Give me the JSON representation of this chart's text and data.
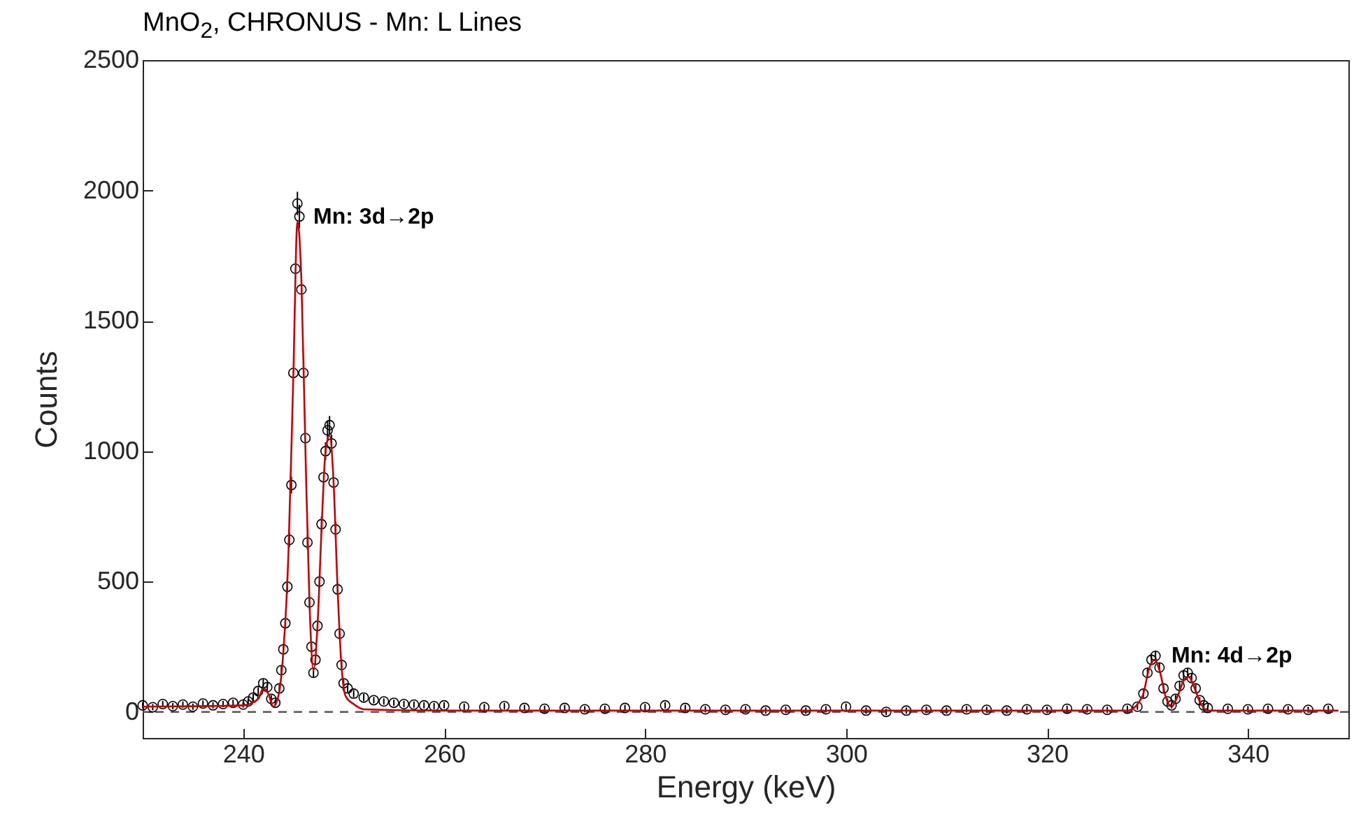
{
  "chart_data": {
    "type": "scatter",
    "title": "MnO$_{2}$, CHRONUS - Mn: L Lines",
    "xlabel": "Energy (keV)",
    "ylabel": "Counts",
    "xlim": [
      230,
      350
    ],
    "xticks": [
      240,
      260,
      280,
      300,
      320,
      340
    ],
    "ylim": [
      -100,
      2500
    ],
    "yticks": [
      0,
      500,
      1000,
      1500,
      2000,
      2500
    ],
    "grid": false,
    "series": [
      {
        "color": "#000000",
        "marker": "circle",
        "x": [
          230,
          231,
          232,
          233,
          234,
          235,
          236,
          237,
          238,
          239,
          240,
          240.5,
          241,
          241.5,
          242,
          242.4,
          242.8,
          243.2,
          243.6,
          243.8,
          244.0,
          244.2,
          244.4,
          244.6,
          244.8,
          245.0,
          245.2,
          245.4,
          245.6,
          245.8,
          246.0,
          246.2,
          246.4,
          246.6,
          246.8,
          247.0,
          247.2,
          247.4,
          247.6,
          247.8,
          248.0,
          248.2,
          248.4,
          248.6,
          248.8,
          249.0,
          249.2,
          249.4,
          249.6,
          249.8,
          250.0,
          250.4,
          251,
          252,
          253,
          254,
          255,
          256,
          257,
          258,
          259,
          260,
          262,
          264,
          266,
          268,
          270,
          272,
          274,
          276,
          278,
          280,
          282,
          284,
          286,
          288,
          290,
          292,
          294,
          296,
          298,
          300,
          302,
          304,
          306,
          308,
          310,
          312,
          314,
          316,
          318,
          320,
          322,
          324,
          326,
          328,
          329,
          329.6,
          330,
          330.4,
          330.8,
          331.2,
          331.6,
          332,
          332.4,
          332.8,
          333.2,
          333.6,
          334,
          334.4,
          334.8,
          335.2,
          335.6,
          336,
          338,
          340,
          342,
          344,
          346,
          348
        ],
        "values": [
          25,
          18,
          30,
          22,
          28,
          20,
          32,
          25,
          30,
          35,
          28,
          40,
          55,
          80,
          110,
          95,
          50,
          35,
          90,
          160,
          240,
          340,
          480,
          660,
          870,
          1300,
          1700,
          1950,
          1900,
          1620,
          1300,
          1050,
          650,
          420,
          250,
          150,
          200,
          330,
          500,
          720,
          900,
          1000,
          1080,
          1100,
          1030,
          880,
          700,
          470,
          300,
          180,
          110,
          90,
          70,
          55,
          45,
          40,
          35,
          30,
          28,
          25,
          22,
          25,
          20,
          18,
          22,
          15,
          12,
          15,
          10,
          12,
          15,
          18,
          25,
          15,
          10,
          8,
          10,
          5,
          8,
          5,
          10,
          20,
          5,
          0,
          5,
          8,
          5,
          10,
          8,
          5,
          10,
          8,
          12,
          10,
          8,
          12,
          20,
          70,
          150,
          200,
          215,
          170,
          90,
          40,
          25,
          50,
          100,
          140,
          150,
          130,
          90,
          45,
          25,
          15,
          12,
          10,
          12,
          10,
          8,
          12
        ],
        "errors": [
          12,
          12,
          12,
          12,
          12,
          12,
          12,
          12,
          12,
          12,
          12,
          12,
          14,
          15,
          16,
          16,
          14,
          12,
          15,
          18,
          20,
          22,
          25,
          28,
          32,
          null,
          null,
          45,
          45,
          null,
          null,
          null,
          28,
          24,
          20,
          18,
          20,
          22,
          25,
          30,
          null,
          34,
          35,
          35,
          34,
          null,
          30,
          25,
          22,
          18,
          16,
          15,
          14,
          14,
          12,
          12,
          12,
          12,
          12,
          12,
          12,
          12,
          12,
          12,
          12,
          12,
          12,
          12,
          12,
          12,
          12,
          12,
          12,
          12,
          12,
          12,
          12,
          12,
          12,
          12,
          12,
          12,
          12,
          12,
          12,
          12,
          12,
          12,
          12,
          12,
          12,
          12,
          12,
          12,
          12,
          12,
          12,
          14,
          18,
          20,
          20,
          18,
          15,
          12,
          12,
          14,
          16,
          18,
          18,
          18,
          15,
          12,
          12,
          12,
          12,
          12,
          12,
          12,
          12,
          12
        ]
      },
      {
        "type": "line",
        "color": "#cc0000",
        "line_style": "solid",
        "x": [
          230,
          240,
          241.5,
          242,
          242.5,
          243,
          243.5,
          244,
          244.5,
          245,
          245.4,
          245.8,
          246.2,
          246.6,
          247,
          247.4,
          247.8,
          248.2,
          248.6,
          249,
          249.4,
          249.8,
          250.2,
          251,
          252,
          260,
          280,
          300,
          328,
          329.5,
          330.2,
          330.7,
          331.2,
          331.8,
          332.4,
          333,
          333.6,
          334.1,
          334.6,
          335.2,
          336,
          349
        ],
        "values": [
          20,
          25,
          50,
          90,
          70,
          20,
          60,
          230,
          600,
          1300,
          1880,
          1650,
          1000,
          420,
          160,
          330,
          700,
          1000,
          1060,
          880,
          470,
          170,
          60,
          30,
          10,
          5,
          5,
          5,
          5,
          60,
          170,
          200,
          160,
          60,
          20,
          60,
          120,
          135,
          100,
          40,
          5,
          5
        ]
      }
    ],
    "ref_lines": [
      {
        "axis": "y",
        "value": 0,
        "color": "#555555",
        "line_style": "dashed"
      }
    ],
    "annotations": [
      {
        "text": "Mn: 3d→2p",
        "x": 245.6,
        "y": 1900
      },
      {
        "text": "Mn: 4d→2p",
        "x": 331,
        "y": 215
      }
    ]
  }
}
